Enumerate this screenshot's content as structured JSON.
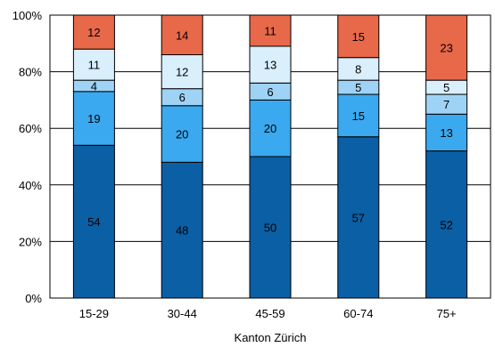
{
  "chart_data": {
    "type": "bar",
    "stacked": true,
    "percent": true,
    "categories": [
      "15-29",
      "30-44",
      "45-59",
      "60-74",
      "75+"
    ],
    "series": [
      {
        "values": [
          54,
          48,
          50,
          57,
          52
        ],
        "color": "#0b5fa5"
      },
      {
        "values": [
          19,
          20,
          20,
          15,
          13
        ],
        "color": "#3aa9ef"
      },
      {
        "values": [
          4,
          6,
          6,
          5,
          7
        ],
        "color": "#9fd3f5"
      },
      {
        "values": [
          11,
          12,
          13,
          8,
          5
        ],
        "color": "#d9effc"
      },
      {
        "values": [
          12,
          14,
          11,
          15,
          23
        ],
        "color": "#e8684a"
      }
    ],
    "ylim": [
      0,
      100
    ],
    "yticks": [
      "0%",
      "20%",
      "40%",
      "60%",
      "80%",
      "100%"
    ],
    "ytick_values": [
      0,
      20,
      40,
      60,
      80,
      100
    ],
    "xlabel": "Kanton Zürich",
    "grid": true
  }
}
